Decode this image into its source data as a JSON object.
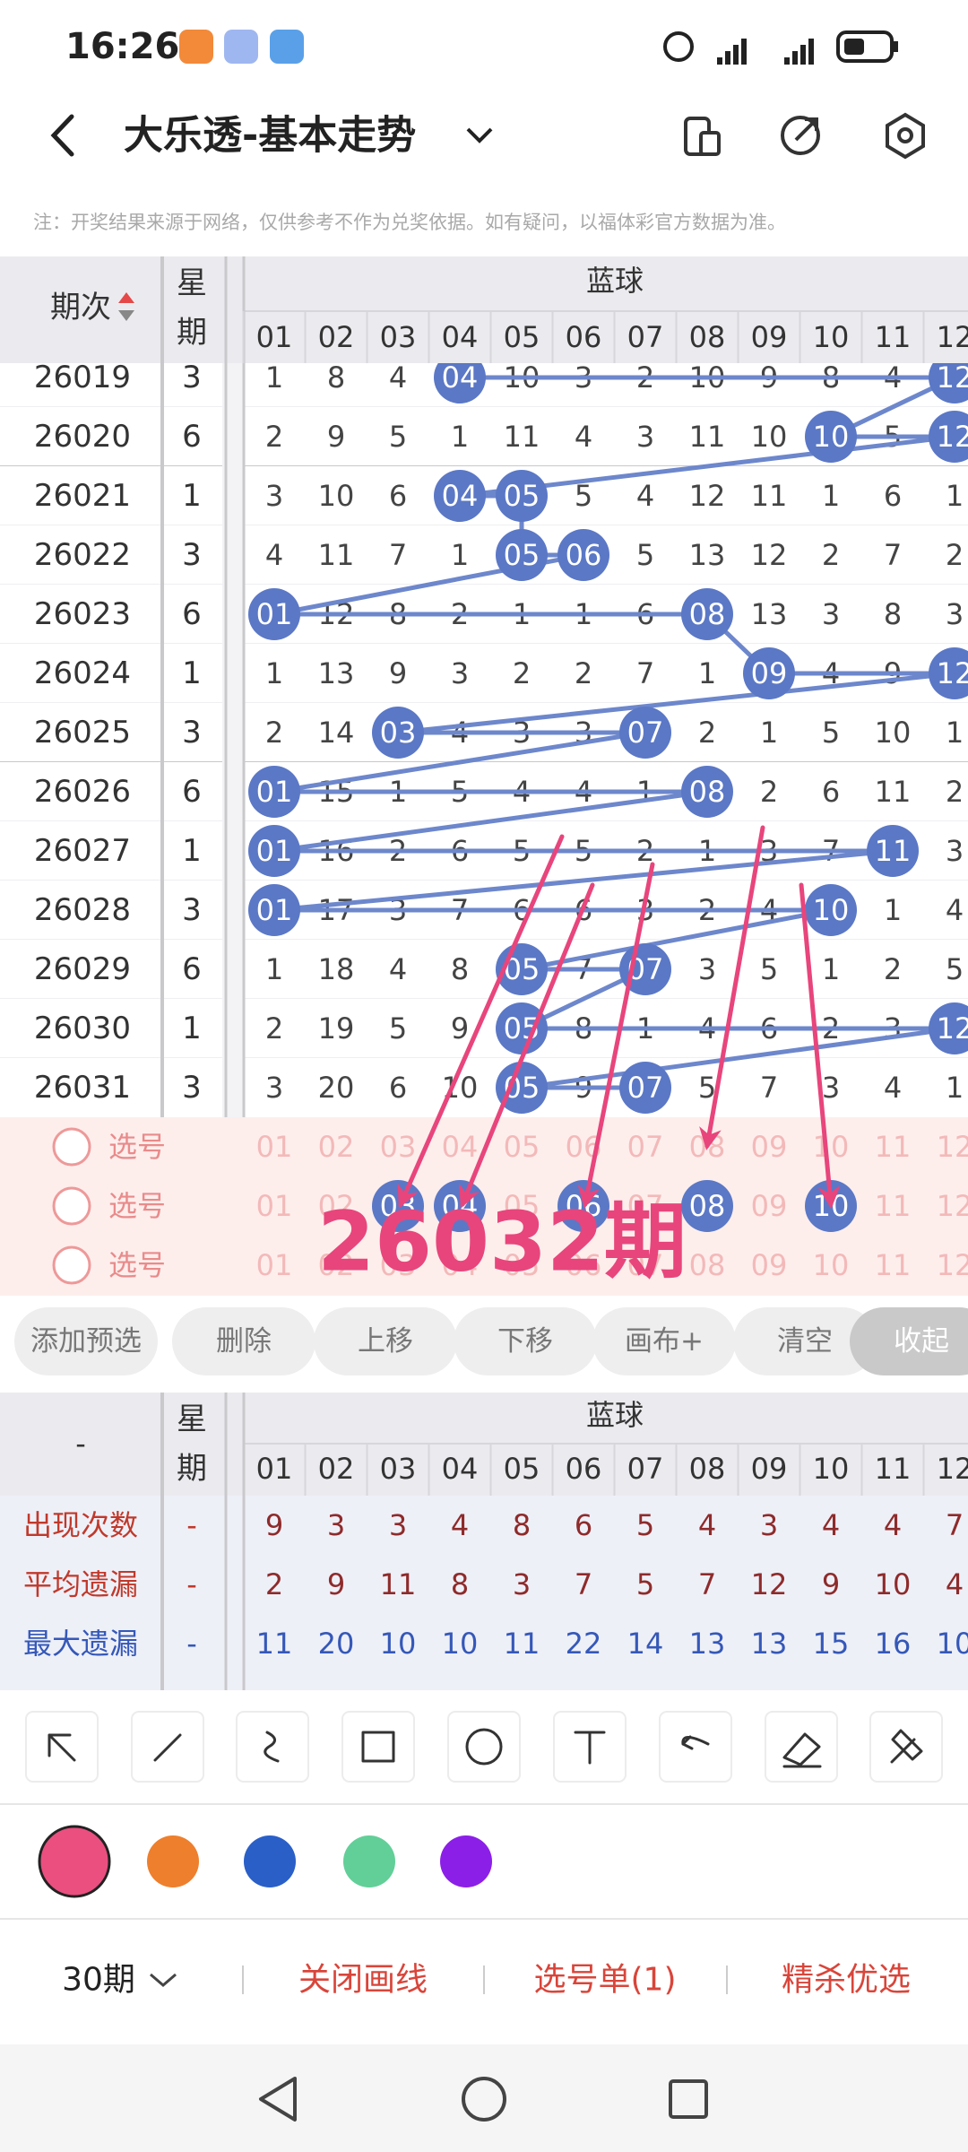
{
  "status_bar": {
    "time": "16:26"
  },
  "header": {
    "title": "大乐透-基本走势"
  },
  "notice": "注：开奖结果来源于网络，仅供参考不作为兑奖依据。如有疑问，以福体彩官方数据为准。",
  "trend_table": {
    "issue_header": "期次",
    "weekday_header": [
      "星",
      "期"
    ],
    "group_header": "蓝球",
    "columns": [
      "01",
      "02",
      "03",
      "04",
      "05",
      "06",
      "07",
      "08",
      "09",
      "10",
      "11",
      "12"
    ],
    "rows": [
      {
        "issue": "26019",
        "weekday": 3,
        "cells": [
          "1",
          "8",
          "4",
          "04",
          "10",
          "3",
          "2",
          "10",
          "9",
          "8",
          "4",
          "12"
        ],
        "hits": [
          3,
          11
        ]
      },
      {
        "issue": "26020",
        "weekday": 6,
        "cells": [
          "2",
          "9",
          "5",
          "1",
          "11",
          "4",
          "3",
          "11",
          "10",
          "10",
          "5",
          "12"
        ],
        "hits": [
          9,
          11
        ]
      },
      {
        "issue": "26021",
        "weekday": 1,
        "cells": [
          "3",
          "10",
          "6",
          "04",
          "05",
          "5",
          "4",
          "12",
          "11",
          "1",
          "6",
          "1"
        ],
        "hits": [
          3,
          4
        ]
      },
      {
        "issue": "26022",
        "weekday": 3,
        "cells": [
          "4",
          "11",
          "7",
          "1",
          "05",
          "06",
          "5",
          "13",
          "12",
          "2",
          "7",
          "2"
        ],
        "hits": [
          4,
          5
        ]
      },
      {
        "issue": "26023",
        "weekday": 6,
        "cells": [
          "01",
          "12",
          "8",
          "2",
          "1",
          "1",
          "6",
          "08",
          "13",
          "3",
          "8",
          "3"
        ],
        "hits": [
          0,
          7
        ]
      },
      {
        "issue": "26024",
        "weekday": 1,
        "cells": [
          "1",
          "13",
          "9",
          "3",
          "2",
          "2",
          "7",
          "1",
          "09",
          "4",
          "9",
          "12"
        ],
        "hits": [
          8,
          11
        ]
      },
      {
        "issue": "26025",
        "weekday": 3,
        "cells": [
          "2",
          "14",
          "03",
          "4",
          "3",
          "3",
          "07",
          "2",
          "1",
          "5",
          "10",
          "1"
        ],
        "hits": [
          2,
          6
        ]
      },
      {
        "issue": "26026",
        "weekday": 6,
        "cells": [
          "01",
          "15",
          "1",
          "5",
          "4",
          "4",
          "1",
          "08",
          "2",
          "6",
          "11",
          "2"
        ],
        "hits": [
          0,
          7
        ]
      },
      {
        "issue": "26027",
        "weekday": 1,
        "cells": [
          "01",
          "16",
          "2",
          "6",
          "5",
          "5",
          "2",
          "1",
          "3",
          "7",
          "11",
          "3"
        ],
        "hits": [
          0,
          10
        ]
      },
      {
        "issue": "26028",
        "weekday": 3,
        "cells": [
          "01",
          "17",
          "3",
          "7",
          "6",
          "6",
          "3",
          "2",
          "4",
          "10",
          "1",
          "4"
        ],
        "hits": [
          0,
          9
        ]
      },
      {
        "issue": "26029",
        "weekday": 6,
        "cells": [
          "1",
          "18",
          "4",
          "8",
          "05",
          "7",
          "07",
          "3",
          "5",
          "1",
          "2",
          "5"
        ],
        "hits": [
          4,
          6
        ]
      },
      {
        "issue": "26030",
        "weekday": 1,
        "cells": [
          "2",
          "19",
          "5",
          "9",
          "05",
          "8",
          "1",
          "4",
          "6",
          "2",
          "3",
          "12"
        ],
        "hits": [
          4,
          11
        ]
      },
      {
        "issue": "26031",
        "weekday": 3,
        "cells": [
          "3",
          "20",
          "6",
          "10",
          "05",
          "9",
          "07",
          "5",
          "7",
          "3",
          "4",
          "1"
        ],
        "hits": [
          4,
          6
        ]
      }
    ]
  },
  "selection": {
    "rows": [
      {
        "label": "选号",
        "numbers": [
          "01",
          "02",
          "03",
          "04",
          "05",
          "06",
          "07",
          "08",
          "09",
          "10",
          "11",
          "12"
        ],
        "picked": []
      },
      {
        "label": "选号",
        "numbers": [
          "01",
          "02",
          "03",
          "04",
          "05",
          "06",
          "07",
          "08",
          "09",
          "10",
          "11",
          "12"
        ],
        "picked": [
          2,
          3,
          5,
          7,
          9
        ]
      },
      {
        "label": "选号",
        "numbers": [
          "01",
          "02",
          "03",
          "04",
          "05",
          "06",
          "07",
          "08",
          "09",
          "10",
          "11",
          "12"
        ],
        "picked": []
      }
    ],
    "annotation": "26032期"
  },
  "buttons": [
    "添加预选",
    "删除",
    "上移",
    "下移",
    "画布+",
    "清空",
    "收起"
  ],
  "stats_table": {
    "corner": "-",
    "weekday_header": [
      "星",
      "期"
    ],
    "group_header": "蓝球",
    "columns": [
      "01",
      "02",
      "03",
      "04",
      "05",
      "06",
      "07",
      "08",
      "09",
      "10",
      "11",
      "12"
    ],
    "rows": [
      {
        "label": "出现次数",
        "weekday": "-",
        "values": [
          9,
          3,
          3,
          4,
          8,
          6,
          5,
          4,
          3,
          4,
          4,
          7
        ]
      },
      {
        "label": "平均遗漏",
        "weekday": "-",
        "values": [
          2,
          9,
          11,
          8,
          3,
          7,
          5,
          7,
          12,
          9,
          10,
          4
        ]
      },
      {
        "label": "最大遗漏",
        "weekday": "-",
        "values": [
          11,
          20,
          10,
          10,
          11,
          22,
          14,
          13,
          13,
          15,
          16,
          10
        ]
      }
    ]
  },
  "bottom_bar": {
    "period": "30期",
    "actions": [
      "关闭画线",
      "选号单(1)",
      "精杀优选"
    ]
  }
}
